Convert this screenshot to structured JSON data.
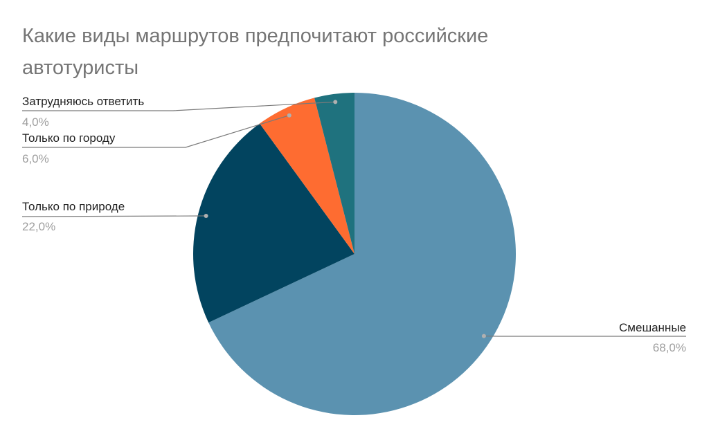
{
  "chart_data": {
    "type": "pie",
    "title_lines": [
      "Какие виды маршрутов предпочитают российские",
      "автотуристы"
    ],
    "slices": [
      {
        "label": "Смешанные",
        "value": 68.0,
        "value_label": "68,0%",
        "color": "#5b92b0"
      },
      {
        "label": "Только по природе",
        "value": 22.0,
        "value_label": "22,0%",
        "color": "#02445f"
      },
      {
        "label": "Только по городу",
        "value": 6.0,
        "value_label": "6,0%",
        "color": "#fe6c31"
      },
      {
        "label": "Затрудняюсь ответить",
        "value": 4.0,
        "value_label": "4,0%",
        "color": "#1f727e"
      }
    ],
    "start_angle": "12 o'clock",
    "direction": "clockwise",
    "legend": "none"
  }
}
